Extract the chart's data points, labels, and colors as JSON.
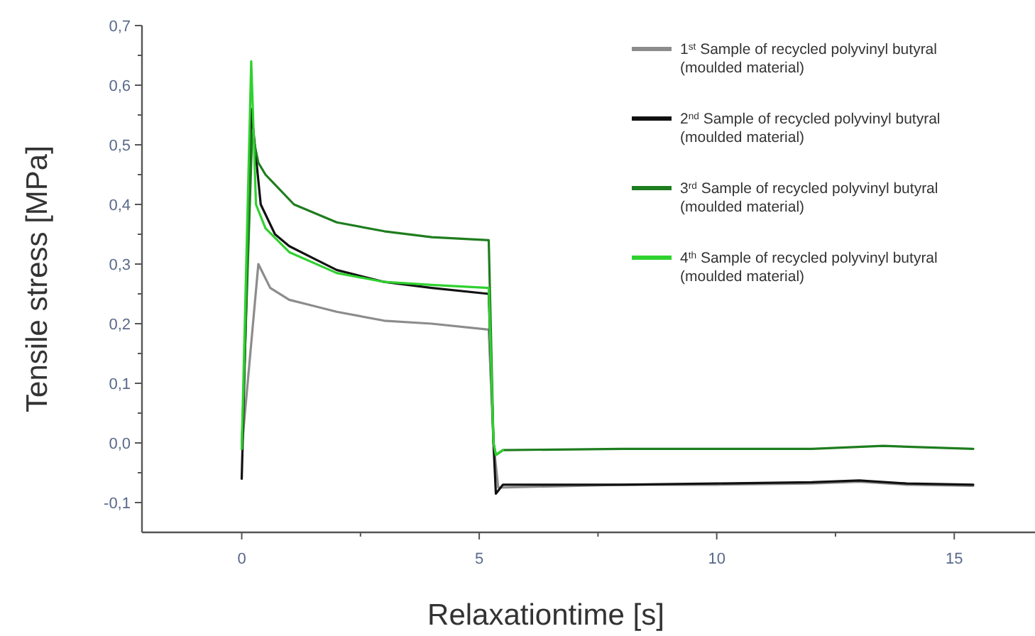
{
  "chart_data": {
    "type": "line",
    "xlabel": "Relaxationtime [s]",
    "ylabel": "Tensile stress [MPa]",
    "xlim": [
      -2.1,
      16.7
    ],
    "ylim": [
      -0.15,
      0.7
    ],
    "xticks": [
      0,
      {
        "value": 2.5,
        "label": null
      },
      5,
      {
        "value": 7.5,
        "label": null
      },
      10,
      {
        "value": 12.5,
        "label": null
      },
      15
    ],
    "yticks": [
      {
        "value": -0.1,
        "label": "-0,1"
      },
      {
        "value": -0.05,
        "label": null
      },
      {
        "value": 0,
        "label": "0,0"
      },
      {
        "value": 0.05,
        "label": null
      },
      {
        "value": 0.1,
        "label": "0,1"
      },
      {
        "value": 0.15,
        "label": null
      },
      {
        "value": 0.2,
        "label": "0,2"
      },
      {
        "value": 0.25,
        "label": null
      },
      {
        "value": 0.3,
        "label": "0,3"
      },
      {
        "value": 0.35,
        "label": null
      },
      {
        "value": 0.4,
        "label": "0,4"
      },
      {
        "value": 0.45,
        "label": null
      },
      {
        "value": 0.5,
        "label": "0,5"
      },
      {
        "value": 0.55,
        "label": null
      },
      {
        "value": 0.6,
        "label": "0,6"
      },
      {
        "value": 0.65,
        "label": null
      },
      {
        "value": 0.7,
        "label": "0,7"
      }
    ],
    "grid": false,
    "legend": "top right",
    "line_style": "solid",
    "marker": "none",
    "series": [
      {
        "name": "1$^{st}$ Sample of recycled polyvinyl butyral (moulded material)",
        "color": "#8c8c8c",
        "x": [
          0,
          0.35,
          0.6,
          1,
          1.5,
          2,
          3,
          4,
          5.2,
          5.3,
          5.4,
          8,
          10,
          12,
          13,
          14,
          15.4
        ],
        "values": [
          -0.01,
          0.3,
          0.26,
          0.24,
          0.23,
          0.22,
          0.205,
          0.2,
          0.19,
          0.0,
          -0.075,
          -0.07,
          -0.07,
          -0.068,
          -0.065,
          -0.07,
          -0.072
        ]
      },
      {
        "name": "2$^{nd}$ Sample of recycled polyvinyl butyral (moulded material)",
        "color": "#111111",
        "x": [
          0,
          0.2,
          0.4,
          0.7,
          1,
          1.5,
          2,
          3,
          4,
          5.2,
          5.3,
          5.35,
          5.5,
          8,
          10,
          12,
          13,
          14,
          15.4
        ],
        "values": [
          -0.06,
          0.56,
          0.4,
          0.35,
          0.33,
          0.31,
          0.29,
          0.27,
          0.26,
          0.25,
          0.0,
          -0.085,
          -0.07,
          -0.07,
          -0.068,
          -0.066,
          -0.063,
          -0.068,
          -0.07
        ]
      },
      {
        "name": "3$^{rd}$ Sample of recycled polyvinyl butyral (moulded material)",
        "color": "#1e7d1e",
        "x": [
          0,
          0.22,
          0.35,
          0.5,
          1.1,
          2,
          3,
          4,
          5.2,
          5.3,
          5.35,
          5.5,
          8,
          10,
          12,
          13.5,
          15.4
        ],
        "values": [
          -0.01,
          0.52,
          0.47,
          0.45,
          0.4,
          0.37,
          0.355,
          0.345,
          0.34,
          0.0,
          -0.02,
          -0.012,
          -0.01,
          -0.01,
          -0.01,
          -0.005,
          -0.01
        ]
      },
      {
        "name": "4$^{th}$ Sample of recycled polyvinyl butyral (moulded material)",
        "color": "#2fd12f",
        "x": [
          0,
          0.2,
          0.3,
          0.5,
          1,
          2,
          3,
          4,
          5.2,
          5.3,
          5.35,
          5.5
        ],
        "values": [
          -0.01,
          0.64,
          0.4,
          0.36,
          0.32,
          0.285,
          0.27,
          0.265,
          0.26,
          0.0,
          -0.02,
          -0.012
        ]
      }
    ]
  }
}
